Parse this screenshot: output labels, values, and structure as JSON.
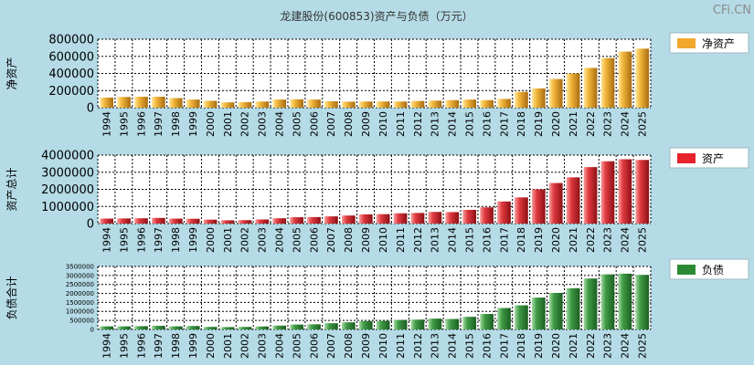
{
  "title": "龙建股份(600853)资产与负债（万元）",
  "watermark": "CFi.CN",
  "colors": {
    "background": "#b5dbe6",
    "net_assets": "#f2a82b",
    "assets": "#e8232b",
    "liabilities": "#2c8a35"
  },
  "chart_data": [
    {
      "type": "bar",
      "ylabel": "净资产",
      "legend": "净资产",
      "legend_position": "right",
      "grid": true,
      "ylim": [
        0,
        800000
      ],
      "yticks": [
        "0",
        "200000",
        "400000",
        "600000",
        "800000"
      ],
      "categories": [
        "1994",
        "1995",
        "1996",
        "1997",
        "1998",
        "1999",
        "2000",
        "2001",
        "2002",
        "2003",
        "2004",
        "2005",
        "2006",
        "2007",
        "2008",
        "2009",
        "2010",
        "2011",
        "2012",
        "2013",
        "2014",
        "2015",
        "2016",
        "2017",
        "2018",
        "2019",
        "2020",
        "2021",
        "2022",
        "2023",
        "2024",
        "2025"
      ],
      "series": [
        {
          "name": "净资产",
          "values": [
            118000,
            125000,
            128000,
            128000,
            112000,
            95000,
            80000,
            62000,
            65000,
            72000,
            95000,
            98000,
            95000,
            75000,
            70000,
            72000,
            72000,
            72000,
            78000,
            82000,
            88000,
            95000,
            88000,
            102000,
            185000,
            225000,
            335000,
            400000,
            465000,
            580000,
            655000,
            690000
          ]
        }
      ]
    },
    {
      "type": "bar",
      "ylabel": "资产总计",
      "legend": "资产",
      "legend_position": "right",
      "grid": true,
      "ylim": [
        0,
        4000000
      ],
      "yticks": [
        "0",
        "1000000",
        "2000000",
        "3000000",
        "4000000"
      ],
      "categories": [
        "1994",
        "1995",
        "1996",
        "1997",
        "1998",
        "1999",
        "2000",
        "2001",
        "2002",
        "2003",
        "2004",
        "2005",
        "2006",
        "2007",
        "2008",
        "2009",
        "2010",
        "2011",
        "2012",
        "2013",
        "2014",
        "2015",
        "2016",
        "2017",
        "2018",
        "2019",
        "2020",
        "2021",
        "2022",
        "2023",
        "2024",
        "2025"
      ],
      "series": [
        {
          "name": "资产",
          "values": [
            290000,
            300000,
            310000,
            330000,
            290000,
            280000,
            230000,
            190000,
            200000,
            240000,
            310000,
            370000,
            380000,
            420000,
            470000,
            540000,
            550000,
            600000,
            620000,
            680000,
            670000,
            800000,
            950000,
            1290000,
            1530000,
            2000000,
            2370000,
            2700000,
            3300000,
            3640000,
            3760000,
            3720000
          ]
        }
      ]
    },
    {
      "type": "bar",
      "ylabel": "负债合计",
      "legend": "负债",
      "legend_position": "right",
      "grid": true,
      "ylim": [
        0,
        3500000
      ],
      "yticks": [
        "0",
        "500000",
        "1000000",
        "1500000",
        "2000000",
        "2500000",
        "3000000",
        "3500000"
      ],
      "categories": [
        "1994",
        "1995",
        "1996",
        "1997",
        "1998",
        "1999",
        "2000",
        "2001",
        "2002",
        "2003",
        "2004",
        "2005",
        "2006",
        "2007",
        "2008",
        "2009",
        "2010",
        "2011",
        "2012",
        "2013",
        "2014",
        "2015",
        "2016",
        "2017",
        "2018",
        "2019",
        "2020",
        "2021",
        "2022",
        "2023",
        "2024",
        "2025"
      ],
      "series": [
        {
          "name": "负债",
          "values": [
            170000,
            170000,
            180000,
            200000,
            170000,
            190000,
            140000,
            130000,
            140000,
            165000,
            210000,
            270000,
            285000,
            345000,
            395000,
            465000,
            475000,
            525000,
            545000,
            600000,
            580000,
            700000,
            860000,
            1190000,
            1340000,
            1770000,
            2030000,
            2290000,
            2830000,
            3060000,
            3100000,
            3030000
          ]
        }
      ]
    }
  ]
}
